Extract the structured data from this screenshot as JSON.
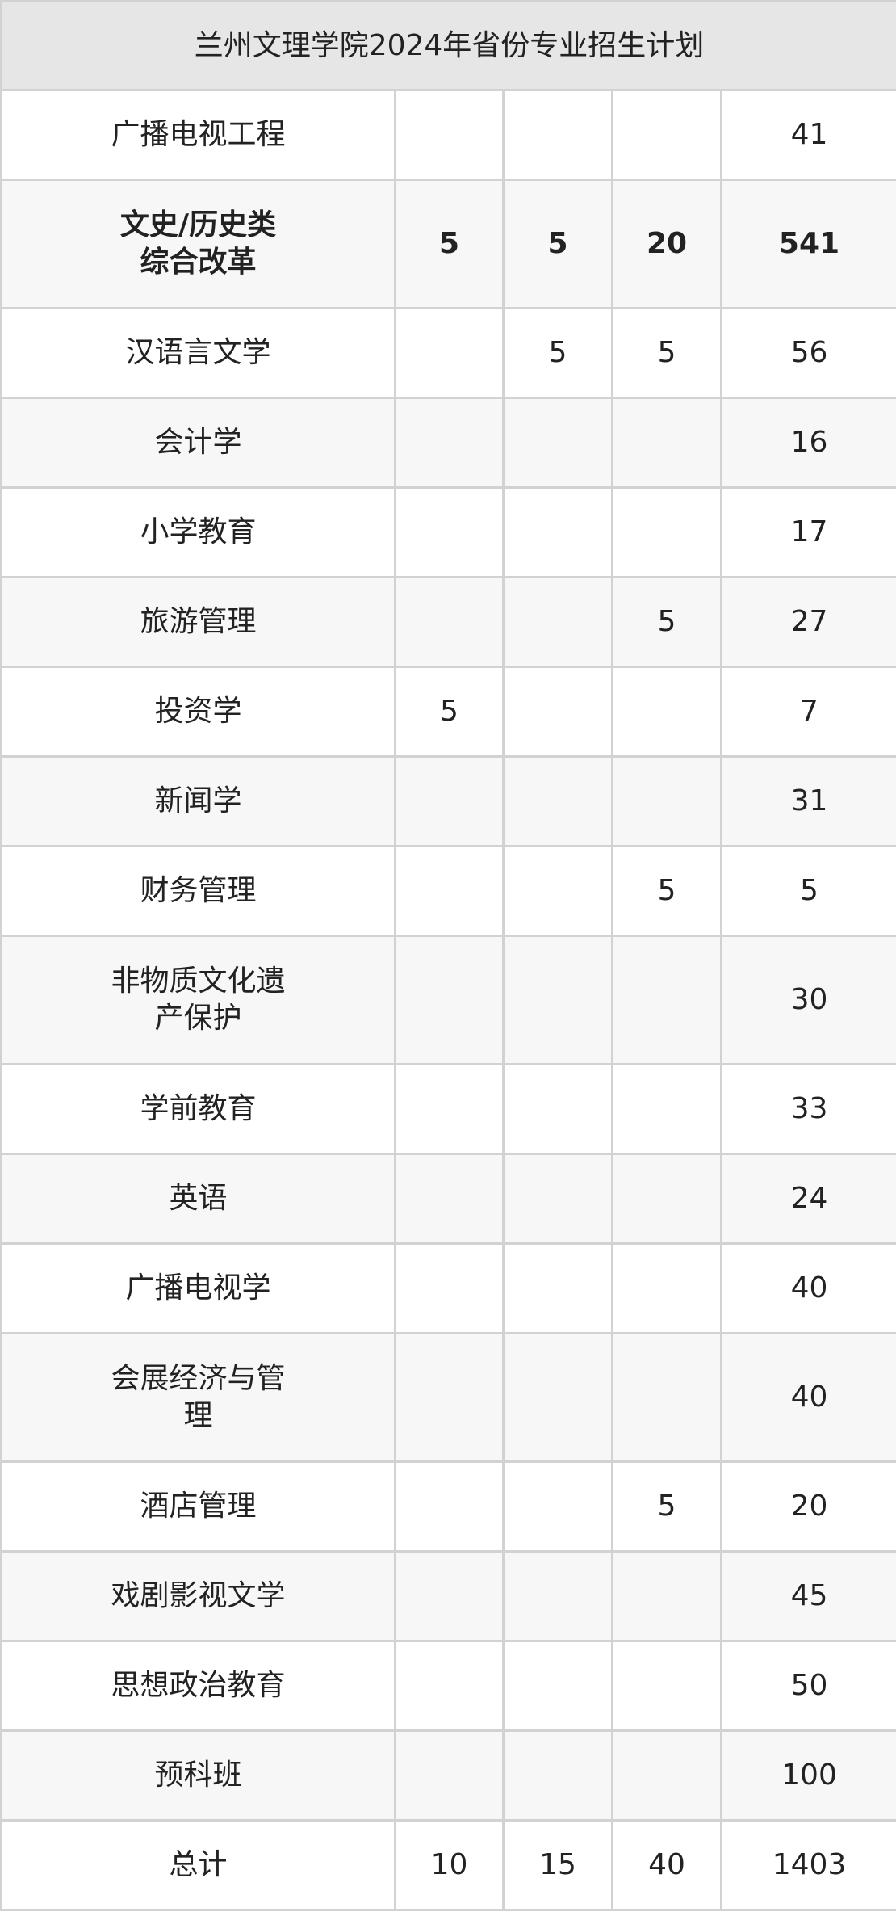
{
  "title": "兰州文理学院2024年省份专业招生计划",
  "rows": [
    {
      "name": "广播电视工程",
      "c1": "",
      "c2": "",
      "c3": "",
      "total": "41"
    },
    {
      "name": "文史/历史类\n综合改革",
      "c1": "5",
      "c2": "5",
      "c3": "20",
      "total": "541",
      "bold": true
    },
    {
      "name": "汉语言文学",
      "c1": "",
      "c2": "5",
      "c3": "5",
      "total": "56"
    },
    {
      "name": "会计学",
      "c1": "",
      "c2": "",
      "c3": "",
      "total": "16"
    },
    {
      "name": "小学教育",
      "c1": "",
      "c2": "",
      "c3": "",
      "total": "17"
    },
    {
      "name": "旅游管理",
      "c1": "",
      "c2": "",
      "c3": "5",
      "total": "27"
    },
    {
      "name": "投资学",
      "c1": "5",
      "c2": "",
      "c3": "",
      "total": "7"
    },
    {
      "name": "新闻学",
      "c1": "",
      "c2": "",
      "c3": "",
      "total": "31"
    },
    {
      "name": "财务管理",
      "c1": "",
      "c2": "",
      "c3": "5",
      "total": "5"
    },
    {
      "name": "非物质文化遗\n产保护",
      "c1": "",
      "c2": "",
      "c3": "",
      "total": "30"
    },
    {
      "name": "学前教育",
      "c1": "",
      "c2": "",
      "c3": "",
      "total": "33"
    },
    {
      "name": "英语",
      "c1": "",
      "c2": "",
      "c3": "",
      "total": "24"
    },
    {
      "name": "广播电视学",
      "c1": "",
      "c2": "",
      "c3": "",
      "total": "40"
    },
    {
      "name": "会展经济与管\n理",
      "c1": "",
      "c2": "",
      "c3": "",
      "total": "40"
    },
    {
      "name": "酒店管理",
      "c1": "",
      "c2": "",
      "c3": "5",
      "total": "20"
    },
    {
      "name": "戏剧影视文学",
      "c1": "",
      "c2": "",
      "c3": "",
      "total": "45"
    },
    {
      "name": "思想政治教育",
      "c1": "",
      "c2": "",
      "c3": "",
      "total": "50"
    },
    {
      "name": "预科班",
      "c1": "",
      "c2": "",
      "c3": "",
      "total": "100"
    },
    {
      "name": "总计",
      "c1": "10",
      "c2": "15",
      "c3": "40",
      "total": "1403"
    }
  ]
}
